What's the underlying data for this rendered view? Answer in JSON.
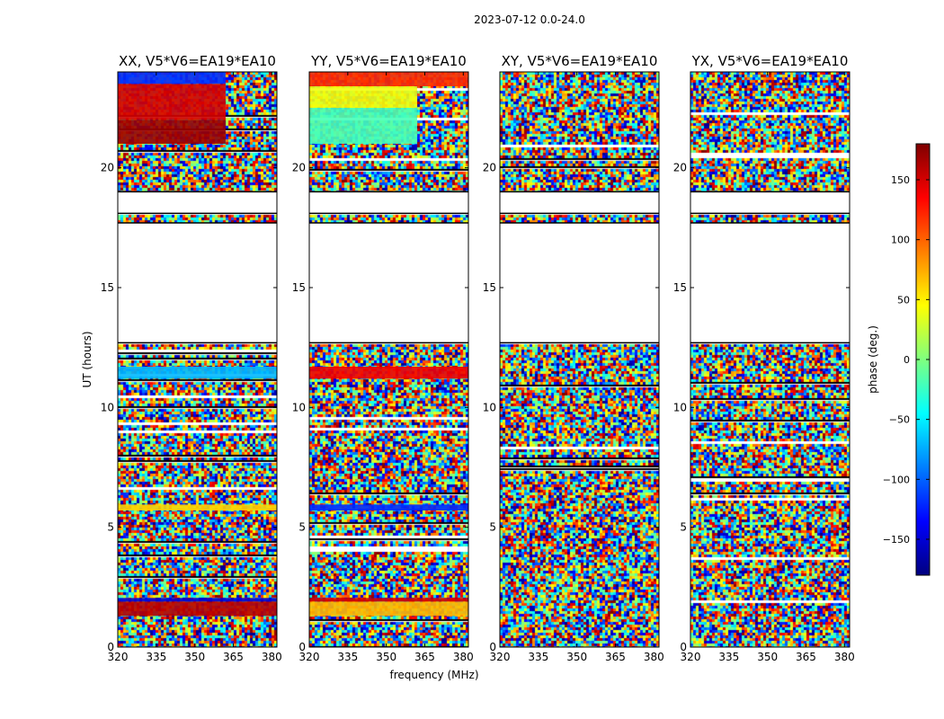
{
  "chart_data": {
    "type": "heatmap",
    "suptitle": "2023-07-12 0.0-24.0",
    "xlabel": "frequency (MHz)",
    "ylabel": "UT (hours)",
    "xlim": [
      320,
      382
    ],
    "ylim": [
      0,
      24
    ],
    "xticks": [
      320,
      335,
      350,
      365,
      380
    ],
    "yticks": [
      0,
      5,
      10,
      15,
      20
    ],
    "colorbar": {
      "label": "phase (deg.)",
      "range": [
        -180,
        180
      ],
      "ticks": [
        150,
        100,
        50,
        0,
        -50,
        -100,
        -150
      ],
      "tick_labels": [
        "150",
        "100",
        "50",
        "0",
        "−50",
        "−100",
        "−150"
      ],
      "colormap": [
        "#00007f",
        "#0000ff",
        "#007fff",
        "#00ffff",
        "#7fff7f",
        "#ffff00",
        "#ff7f00",
        "#ff0000",
        "#7f0000"
      ]
    },
    "flagged_ut_ranges": [
      [
        12.7,
        17.7
      ],
      [
        18.1,
        19.0
      ]
    ],
    "panels": [
      {
        "title": "XX, V5*V6=EA19*EA10",
        "coherent_bands": [
          {
            "ut_range": [
              22.0,
              23.5
            ],
            "freq_range": [
              320,
              362
            ],
            "phase_deg": 150
          },
          {
            "ut_range": [
              21.0,
              22.0
            ],
            "freq_range": [
              320,
              362
            ],
            "phase_deg": 170
          },
          {
            "ut_range": [
              23.5,
              24.0
            ],
            "freq_range": [
              320,
              362
            ],
            "phase_deg": -120
          },
          {
            "ut_range": [
              11.2,
              11.7
            ],
            "freq_range": [
              320,
              382
            ],
            "phase_deg": -70
          },
          {
            "ut_range": [
              5.7,
              5.95
            ],
            "freq_range": [
              320,
              382
            ],
            "phase_deg": 60
          },
          {
            "ut_range": [
              1.3,
              1.9
            ],
            "freq_range": [
              320,
              382
            ],
            "phase_deg": 160
          },
          {
            "ut_range": [
              1.9,
              2.05
            ],
            "freq_range": [
              320,
              382
            ],
            "phase_deg": -150
          }
        ]
      },
      {
        "title": "YY, V5*V6=EA19*EA10",
        "coherent_bands": [
          {
            "ut_range": [
              21.0,
              22.5
            ],
            "freq_range": [
              320,
              362
            ],
            "phase_deg": -20
          },
          {
            "ut_range": [
              22.5,
              23.4
            ],
            "freq_range": [
              320,
              362
            ],
            "phase_deg": 40
          },
          {
            "ut_range": [
              23.4,
              24.0
            ],
            "freq_range": [
              320,
              382
            ],
            "phase_deg": 120
          },
          {
            "ut_range": [
              11.2,
              11.7
            ],
            "freq_range": [
              320,
              382
            ],
            "phase_deg": 140
          },
          {
            "ut_range": [
              5.7,
              5.95
            ],
            "freq_range": [
              320,
              382
            ],
            "phase_deg": -120
          },
          {
            "ut_range": [
              1.3,
              1.9
            ],
            "freq_range": [
              320,
              382
            ],
            "phase_deg": 70
          },
          {
            "ut_range": [
              1.9,
              2.05
            ],
            "freq_range": [
              320,
              382
            ],
            "phase_deg": 150
          }
        ]
      },
      {
        "title": "XY, V5*V6=EA19*EA10",
        "coherent_bands": []
      },
      {
        "title": "YX, V5*V6=EA19*EA10",
        "coherent_bands": []
      }
    ]
  }
}
